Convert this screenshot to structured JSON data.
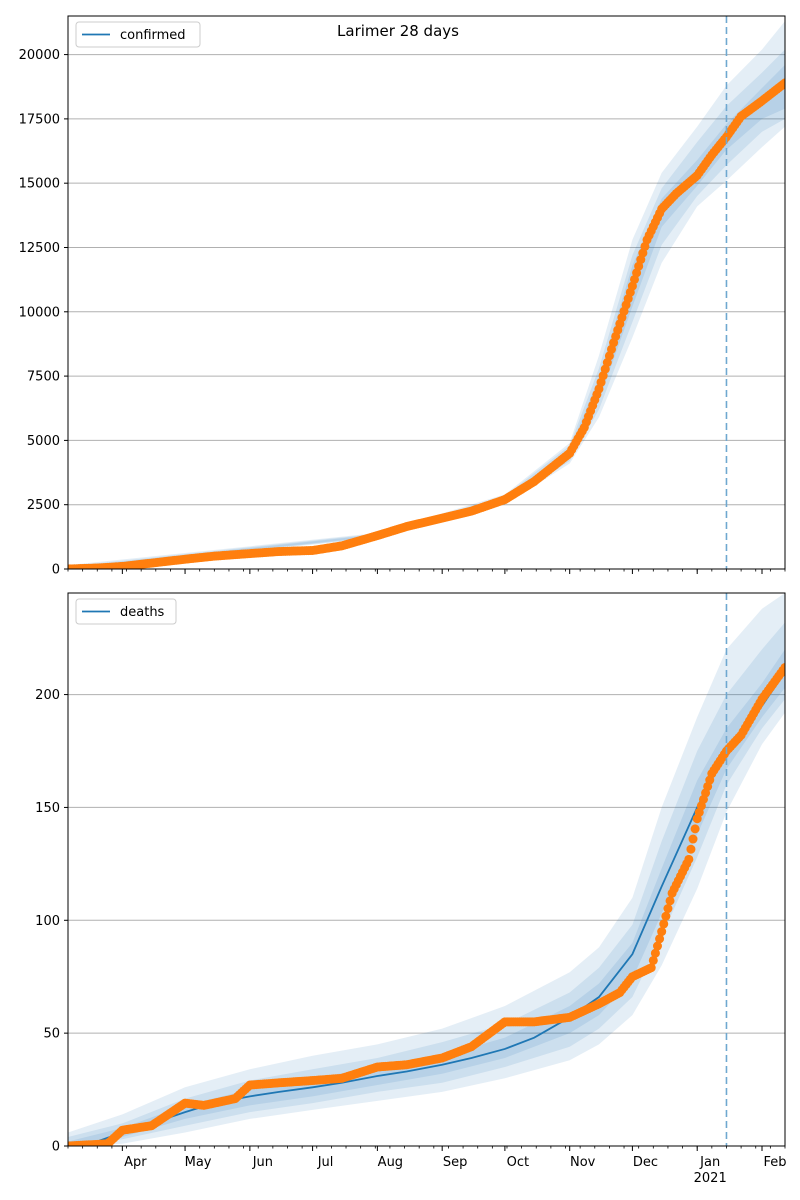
{
  "figure": {
    "title": "Larimer 28 days"
  },
  "colors": {
    "model": "#1f77b4",
    "observed": "#ff7f0e",
    "band": "#1f77b4",
    "grid": "#b0b0b0",
    "forecast_line": "#6fa8d0"
  },
  "chart_data": [
    {
      "type": "line",
      "legend": "confirmed",
      "legend_position": "top-left",
      "grid": "y",
      "x_type": "date",
      "xlim": [
        "2020-03-06",
        "2021-02-12"
      ],
      "ylim": [
        0,
        21500
      ],
      "yticks": [
        0,
        2500,
        5000,
        7500,
        10000,
        12500,
        15000,
        17500,
        20000
      ],
      "forecast_start": "2021-01-15",
      "series": [
        {
          "name": "confirmed",
          "x": [
            "2020-03-06",
            "2020-04-01",
            "2020-05-01",
            "2020-06-01",
            "2020-07-01",
            "2020-08-01",
            "2020-09-01",
            "2020-10-01",
            "2020-10-15",
            "2020-11-01",
            "2020-11-08",
            "2020-11-15",
            "2020-11-22",
            "2020-12-01",
            "2020-12-08",
            "2020-12-15",
            "2020-12-22",
            "2021-01-01",
            "2021-01-08",
            "2021-01-15",
            "2021-01-22",
            "2021-02-01",
            "2021-02-12"
          ],
          "y": [
            0,
            100,
            380,
            600,
            720,
            1300,
            1980,
            2700,
            3400,
            4500,
            5500,
            7000,
            8800,
            11000,
            12800,
            14000,
            14600,
            15300,
            16100,
            16800,
            17600,
            18200,
            18900
          ]
        }
      ],
      "observed": {
        "x": [
          "2020-03-06",
          "2020-03-20",
          "2020-04-01",
          "2020-04-15",
          "2020-05-01",
          "2020-05-15",
          "2020-06-01",
          "2020-06-15",
          "2020-07-01",
          "2020-07-15",
          "2020-08-01",
          "2020-08-15",
          "2020-09-01",
          "2020-09-15",
          "2020-10-01",
          "2020-10-15",
          "2020-11-01",
          "2020-11-08",
          "2020-11-15",
          "2020-11-22",
          "2020-12-01",
          "2020-12-08",
          "2020-12-15",
          "2020-12-22",
          "2021-01-01",
          "2021-01-08",
          "2021-01-15",
          "2021-01-22",
          "2021-02-01",
          "2021-02-12"
        ],
        "y": [
          0,
          40,
          100,
          230,
          380,
          500,
          600,
          680,
          720,
          900,
          1300,
          1650,
          1980,
          2250,
          2700,
          3400,
          4500,
          5500,
          7000,
          8800,
          11000,
          12800,
          14000,
          14600,
          15300,
          16100,
          16800,
          17600,
          18200,
          18900
        ]
      },
      "bands": [
        {
          "x": [
            "2020-03-06",
            "2020-08-01",
            "2020-10-01",
            "2020-11-01",
            "2020-11-15",
            "2020-12-01",
            "2020-12-15",
            "2021-01-01",
            "2021-01-15",
            "2021-02-01",
            "2021-02-12"
          ],
          "lower": [
            0,
            1200,
            2500,
            4100,
            5900,
            9000,
            11900,
            14100,
            15100,
            16400,
            17200
          ],
          "upper": [
            150,
            1400,
            2900,
            4900,
            8300,
            12800,
            15400,
            17200,
            18800,
            20200,
            21300
          ]
        },
        {
          "x": [
            "2020-03-06",
            "2020-08-01",
            "2020-10-01",
            "2020-11-01",
            "2020-11-15",
            "2020-12-01",
            "2020-12-15",
            "2021-01-01",
            "2021-01-15",
            "2021-02-01",
            "2021-02-12"
          ],
          "lower": [
            0,
            1230,
            2560,
            4200,
            6200,
            9600,
            12600,
            14500,
            15700,
            17000,
            17500
          ],
          "upper": [
            100,
            1370,
            2840,
            4800,
            7800,
            12200,
            14800,
            16600,
            18000,
            19300,
            20200
          ]
        },
        {
          "x": [
            "2020-03-06",
            "2020-08-01",
            "2020-10-01",
            "2020-11-01",
            "2020-11-15",
            "2020-12-01",
            "2020-12-15",
            "2021-01-01",
            "2021-01-15",
            "2021-02-01",
            "2021-02-12"
          ],
          "lower": [
            0,
            1260,
            2620,
            4350,
            6550,
            10200,
            13300,
            14900,
            16300,
            17500,
            17900
          ],
          "upper": [
            60,
            1340,
            2780,
            4650,
            7450,
            11800,
            14400,
            15900,
            17300,
            18700,
            19600
          ]
        }
      ]
    },
    {
      "type": "line",
      "legend": "deaths",
      "legend_position": "top-left",
      "grid": "y",
      "x_type": "date",
      "xlim": [
        "2020-03-06",
        "2021-02-12"
      ],
      "ylim": [
        0,
        245
      ],
      "yticks": [
        0,
        50,
        100,
        150,
        200
      ],
      "forecast_start": "2021-01-15",
      "x_tick_labels": [
        {
          "date": "2020-04-01",
          "label": "Apr"
        },
        {
          "date": "2020-05-01",
          "label": "May"
        },
        {
          "date": "2020-06-01",
          "label": "Jun"
        },
        {
          "date": "2020-07-01",
          "label": "Jul"
        },
        {
          "date": "2020-08-01",
          "label": "Aug"
        },
        {
          "date": "2020-09-01",
          "label": "Sep"
        },
        {
          "date": "2020-10-01",
          "label": "Oct"
        },
        {
          "date": "2020-11-01",
          "label": "Nov"
        },
        {
          "date": "2020-12-01",
          "label": "Dec"
        },
        {
          "date": "2021-01-01",
          "label": "Jan",
          "sublabel": "2021"
        },
        {
          "date": "2021-02-01",
          "label": "Feb"
        }
      ],
      "series": [
        {
          "name": "deaths",
          "x": [
            "2020-03-06",
            "2020-03-20",
            "2020-04-01",
            "2020-04-15",
            "2020-05-01",
            "2020-05-15",
            "2020-06-01",
            "2020-06-15",
            "2020-07-01",
            "2020-07-15",
            "2020-08-01",
            "2020-08-15",
            "2020-09-01",
            "2020-09-15",
            "2020-10-01",
            "2020-10-15",
            "2020-11-01",
            "2020-11-15",
            "2020-12-01",
            "2020-12-15",
            "2021-01-01",
            "2021-01-15",
            "2021-02-01",
            "2021-02-12"
          ],
          "y": [
            0,
            2,
            6,
            10,
            15,
            19,
            22,
            24,
            26,
            28,
            31,
            33,
            36,
            39,
            43,
            48,
            57,
            66,
            85,
            115,
            150,
            175,
            195,
            210
          ]
        }
      ],
      "observed": {
        "x": [
          "2020-03-06",
          "2020-03-25",
          "2020-04-01",
          "2020-04-15",
          "2020-05-01",
          "2020-05-10",
          "2020-05-25",
          "2020-06-01",
          "2020-06-15",
          "2020-07-01",
          "2020-07-15",
          "2020-08-01",
          "2020-08-15",
          "2020-09-01",
          "2020-09-15",
          "2020-10-01",
          "2020-10-15",
          "2020-11-01",
          "2020-11-15",
          "2020-11-25",
          "2020-12-01",
          "2020-12-10",
          "2020-12-15",
          "2020-12-20",
          "2020-12-28",
          "2021-01-01",
          "2021-01-08",
          "2021-01-15",
          "2021-01-22",
          "2021-02-01",
          "2021-02-12"
        ],
        "y": [
          0,
          1,
          7,
          9,
          19,
          18,
          21,
          27,
          28,
          29,
          30,
          35,
          36,
          39,
          44,
          55,
          55,
          57,
          63,
          68,
          75,
          79,
          95,
          112,
          127,
          145,
          165,
          175,
          182,
          198,
          212
        ]
      },
      "bands": [
        {
          "x": [
            "2020-03-06",
            "2020-04-01",
            "2020-05-01",
            "2020-06-01",
            "2020-07-01",
            "2020-08-01",
            "2020-09-01",
            "2020-10-01",
            "2020-11-01",
            "2020-11-15",
            "2020-12-01",
            "2020-12-15",
            "2021-01-01",
            "2021-01-15",
            "2021-02-01",
            "2021-02-12"
          ],
          "lower": [
            0,
            1,
            6,
            12,
            16,
            20,
            24,
            30,
            38,
            45,
            58,
            80,
            114,
            148,
            178,
            192
          ],
          "upper": [
            6,
            14,
            26,
            34,
            40,
            45,
            52,
            62,
            77,
            88,
            110,
            150,
            190,
            220,
            238,
            245
          ]
        },
        {
          "x": [
            "2020-03-06",
            "2020-04-01",
            "2020-05-01",
            "2020-06-01",
            "2020-07-01",
            "2020-08-01",
            "2020-09-01",
            "2020-10-01",
            "2020-11-01",
            "2020-11-15",
            "2020-12-01",
            "2020-12-15",
            "2021-01-01",
            "2021-01-15",
            "2021-02-01",
            "2021-02-12"
          ],
          "lower": [
            0,
            3,
            9,
            15,
            19,
            24,
            28,
            35,
            44,
            52,
            66,
            93,
            128,
            160,
            185,
            198
          ],
          "upper": [
            4,
            10,
            21,
            29,
            34,
            39,
            46,
            54,
            68,
            79,
            98,
            135,
            175,
            200,
            220,
            232
          ]
        },
        {
          "x": [
            "2020-03-06",
            "2020-04-01",
            "2020-05-01",
            "2020-06-01",
            "2020-07-01",
            "2020-08-01",
            "2020-09-01",
            "2020-10-01",
            "2020-11-01",
            "2020-11-15",
            "2020-12-01",
            "2020-12-15",
            "2021-01-01",
            "2021-01-15",
            "2021-02-01",
            "2021-02-12"
          ],
          "lower": [
            0,
            4,
            12,
            18,
            22,
            27,
            32,
            39,
            50,
            58,
            74,
            103,
            138,
            167,
            190,
            203
          ],
          "upper": [
            2,
            8,
            18,
            25,
            30,
            35,
            40,
            48,
            62,
            72,
            90,
            123,
            162,
            185,
            205,
            220
          ]
        }
      ]
    }
  ]
}
